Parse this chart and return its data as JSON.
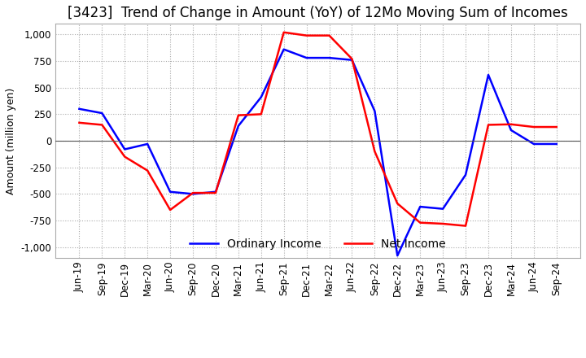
{
  "title": "[3423]  Trend of Change in Amount (YoY) of 12Mo Moving Sum of Incomes",
  "ylabel": "Amount (million yen)",
  "ylim": [
    -1100,
    1100
  ],
  "yticks": [
    -1000,
    -750,
    -500,
    -250,
    0,
    250,
    500,
    750,
    1000
  ],
  "x_labels": [
    "Jun-19",
    "Sep-19",
    "Dec-19",
    "Mar-20",
    "Jun-20",
    "Sep-20",
    "Dec-20",
    "Mar-21",
    "Jun-21",
    "Sep-21",
    "Dec-21",
    "Mar-22",
    "Jun-22",
    "Sep-22",
    "Dec-22",
    "Mar-23",
    "Jun-23",
    "Sep-23",
    "Dec-23",
    "Mar-24",
    "Jun-24",
    "Sep-24"
  ],
  "ordinary_income": [
    300,
    260,
    -80,
    -30,
    -480,
    -500,
    -480,
    140,
    410,
    860,
    780,
    780,
    760,
    280,
    -1080,
    -620,
    -640,
    -320,
    620,
    100,
    -30,
    -30
  ],
  "net_income": [
    170,
    150,
    -150,
    -280,
    -650,
    -490,
    -490,
    240,
    250,
    1020,
    990,
    990,
    770,
    -100,
    -590,
    -770,
    -780,
    -800,
    150,
    155,
    130,
    130
  ],
  "ordinary_income_color": "#0000ff",
  "net_income_color": "#ff0000",
  "background_color": "#ffffff",
  "grid_color": "#aaaaaa",
  "title_fontsize": 12,
  "label_fontsize": 9,
  "tick_fontsize": 8.5,
  "legend_fontsize": 10
}
